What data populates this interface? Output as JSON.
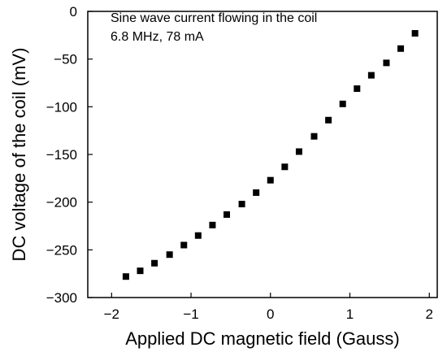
{
  "chart_data": {
    "type": "scatter",
    "xlabel": "Applied DC magnetic field (Gauss)",
    "ylabel": "DC voltage of the coil (mV)",
    "annotations": [
      "Sine wave current flowing in the coil",
      "6.8 MHz, 78 mA"
    ],
    "xlim": [
      -2.3,
      2.1
    ],
    "ylim": [
      -300,
      0
    ],
    "xticks": [
      -2,
      -1,
      0,
      1,
      2
    ],
    "xtick_labels": [
      "−2",
      "−1",
      "0",
      "1",
      "2"
    ],
    "yticks": [
      0,
      -50,
      -100,
      -150,
      -200,
      -250,
      -300
    ],
    "ytick_labels": [
      "0",
      "−50",
      "−100",
      "−150",
      "−200",
      "−250",
      "−300"
    ],
    "grid": false,
    "marker": "square",
    "marker_color": "#000000",
    "x": [
      -1.82,
      -1.64,
      -1.46,
      -1.27,
      -1.09,
      -0.91,
      -0.73,
      -0.55,
      -0.36,
      -0.18,
      0.0,
      0.18,
      0.36,
      0.55,
      0.73,
      0.91,
      1.09,
      1.27,
      1.46,
      1.64,
      1.82
    ],
    "y": [
      -278,
      -272,
      -264,
      -255,
      -245,
      -235,
      -224,
      -213,
      -202,
      -190,
      -177,
      -163,
      -147,
      -131,
      -114,
      -97,
      -81,
      -67,
      -54,
      -39,
      -23
    ]
  }
}
